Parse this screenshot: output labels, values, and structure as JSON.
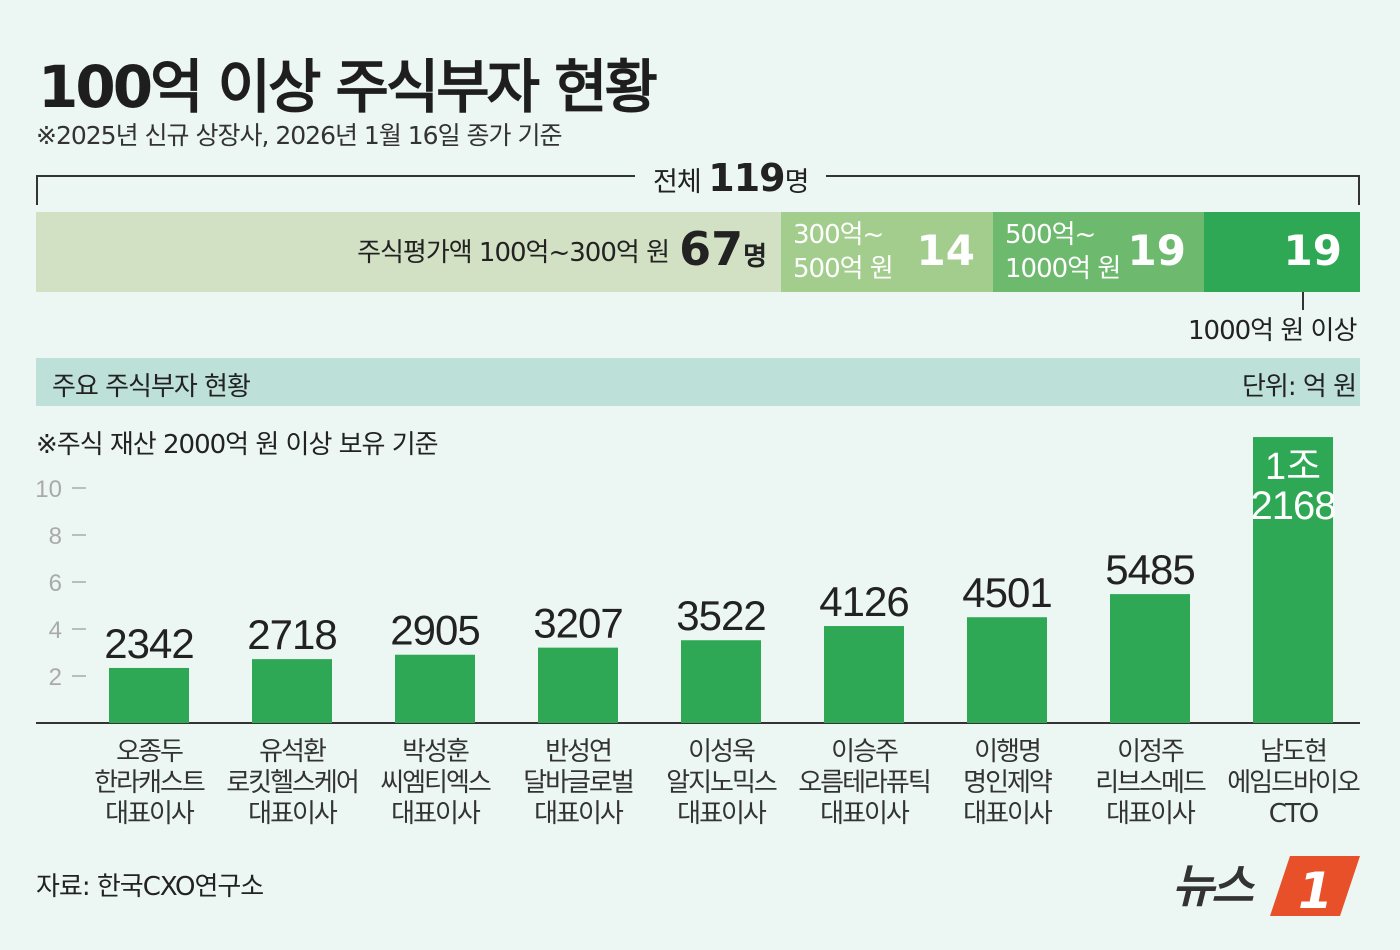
{
  "title": "100억 이상 주식부자 현황",
  "subtitle": "※2025년 신규 상장사, 2026년 1월 16일 종가 기준",
  "summary": {
    "total_prefix": "전체",
    "total_value": "119",
    "total_suffix": "명",
    "segments": [
      {
        "label": "주식평가액 100억~300억 원",
        "value": "67",
        "unit": "명",
        "color": "#d2e0c4"
      },
      {
        "label_line1": "300억~",
        "label_line2": "500억 원",
        "value": "14",
        "color": "#a3cd8d"
      },
      {
        "label_line1": "500억~",
        "label_line2": "1000억 원",
        "value": "19",
        "color": "#6db96d"
      },
      {
        "label": "1000억 원 이상",
        "value": "19",
        "color": "#2ea855"
      }
    ]
  },
  "section": {
    "title": "주요 주식부자 현황",
    "unit": "단위: 억 원",
    "note": "※주식 재산 2000억 원 이상 보유 기준"
  },
  "chart_data": {
    "type": "bar",
    "unit": "억 원",
    "yaxis_ticks": [
      2,
      4,
      6,
      8,
      10
    ],
    "ylim_thousands": [
      0,
      10
    ],
    "bar_color": "#2ea855",
    "categories": [
      {
        "name": "오종두",
        "company": "한라캐스트",
        "title": "대표이사"
      },
      {
        "name": "유석환",
        "company": "로킷헬스케어",
        "title": "대표이사"
      },
      {
        "name": "박성훈",
        "company": "씨엠티엑스",
        "title": "대표이사"
      },
      {
        "name": "반성연",
        "company": "달바글로벌",
        "title": "대표이사"
      },
      {
        "name": "이성욱",
        "company": "알지노믹스",
        "title": "대표이사"
      },
      {
        "name": "이승주",
        "company": "오름테라퓨틱",
        "title": "대표이사"
      },
      {
        "name": "이행명",
        "company": "명인제약",
        "title": "대표이사"
      },
      {
        "name": "이정주",
        "company": "리브스메드",
        "title": "대표이사"
      },
      {
        "name": "남도현",
        "company": "에임드바이오",
        "title": "CTO"
      }
    ],
    "values": [
      2342,
      2718,
      2905,
      3207,
      3522,
      4126,
      4501,
      5485,
      12168
    ],
    "value_labels": [
      "2342",
      "2718",
      "2905",
      "3207",
      "3522",
      "4126",
      "4501",
      "5485",
      "1조 2168"
    ]
  },
  "source": "자료: 한국CXO연구소",
  "logo": {
    "text": "뉴스1",
    "accent": "#e8502a"
  }
}
